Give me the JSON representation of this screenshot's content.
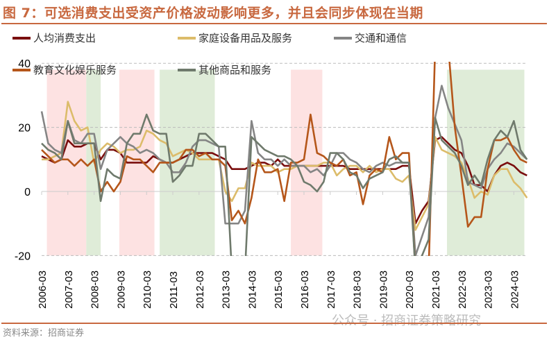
{
  "header": {
    "title": "图 7：可选消费支出受资产价格波动影响更多，并且会同步体现在当期"
  },
  "footer": {
    "source": "资料来源：招商证券",
    "watermark": "公众号 · 招商证券策略研究"
  },
  "chart_data": {
    "type": "line",
    "title": "图 7：可选消费支出受资产价格波动影响更多，并且会同步体现在当期",
    "xlabel": "",
    "ylabel": "",
    "ylim": [
      -20,
      40
    ],
    "yticks": [
      "-20",
      "0",
      "20",
      "40"
    ],
    "xticks": [
      "2006-03",
      "2007-03",
      "2008-03",
      "2009-03",
      "2010-03",
      "2011-03",
      "2012-03",
      "2013-03",
      "2014-03",
      "2015-03",
      "2016-03",
      "2017-03",
      "2018-03",
      "2019-03",
      "2020-03",
      "2021-03",
      "2022-03",
      "2023-03",
      "2024-03"
    ],
    "x_start": "2006-03",
    "frequency": "quarterly",
    "grid": true,
    "legend_position": "top",
    "shaded_periods": [
      {
        "from": 2006.2,
        "to": 2007.7,
        "color": "#fde2e2"
      },
      {
        "from": 2007.7,
        "to": 2008.25,
        "color": "#dfecd8"
      },
      {
        "from": 2008.96,
        "to": 2010.3,
        "color": "#fde2e2"
      },
      {
        "from": 2010.5,
        "to": 2012.6,
        "color": "#dfecd8"
      },
      {
        "from": 2015.5,
        "to": 2016.7,
        "color": "#fde2e2"
      },
      {
        "from": 2021.45,
        "to": 2024.4,
        "color": "#dfecd8"
      }
    ],
    "series": [
      {
        "name": "人均消费支出",
        "color": "#7a0e0e",
        "values": [
          11,
          10,
          9,
          10,
          16,
          14,
          14,
          15,
          15,
          10,
          13,
          13,
          12,
          9,
          9,
          9,
          9,
          11,
          10,
          9,
          9,
          10,
          11,
          12,
          12,
          12,
          12,
          11,
          10,
          7,
          7,
          7,
          8,
          9,
          9,
          8,
          10,
          8,
          8,
          8,
          8,
          8,
          8,
          8,
          8,
          8,
          8,
          7,
          7,
          7,
          7,
          7,
          7,
          7,
          7,
          8,
          8,
          -10,
          -6,
          -3,
          16,
          17,
          15,
          13,
          12,
          8,
          2,
          2,
          0,
          5,
          8,
          9,
          8,
          6,
          5
        ]
      },
      {
        "name": "家庭设备用品及服务",
        "color": "#dcbc6a",
        "values": [
          10,
          10,
          11,
          12,
          28,
          22,
          19,
          20,
          9,
          13,
          15,
          14,
          12,
          13,
          13,
          14,
          19,
          18,
          16,
          15,
          11,
          12,
          13,
          12,
          10,
          10,
          10,
          10,
          0,
          -3,
          1,
          1,
          9,
          8,
          8,
          8,
          6,
          7,
          7,
          8,
          8,
          8,
          8,
          9,
          9,
          5,
          7,
          8,
          8,
          6,
          8,
          6,
          7,
          7,
          4,
          3,
          5,
          -12,
          -8,
          -4,
          17,
          13,
          12,
          11,
          9,
          4,
          -2,
          0,
          -1,
          5,
          7,
          7,
          3,
          1,
          -2
        ]
      },
      {
        "name": "交通和通信",
        "color": "#858585",
        "values": [
          25,
          15,
          13,
          12,
          22,
          16,
          15,
          18,
          18,
          7,
          13,
          15,
          17,
          15,
          14,
          12,
          13,
          12,
          10,
          9,
          6,
          6,
          9,
          14,
          16,
          16,
          15,
          14,
          -10,
          -10,
          -10,
          -6,
          22,
          12,
          10,
          10,
          8,
          10,
          8,
          8,
          8,
          6,
          7,
          5,
          8,
          12,
          12,
          10,
          9,
          7,
          6,
          8,
          9,
          8,
          9,
          9,
          9,
          -20,
          -14,
          -8,
          23,
          33,
          26,
          21,
          16,
          3,
          2,
          1,
          7,
          10,
          12,
          15,
          14,
          12,
          10
        ]
      },
      {
        "name": "教育文化娱乐服务",
        "color": "#b5561a",
        "values": [
          13,
          11,
          9,
          10,
          10,
          8,
          10,
          8,
          10,
          0,
          3,
          0,
          3,
          11,
          10,
          10,
          8,
          6,
          9,
          9,
          9,
          10,
          13,
          13,
          11,
          12,
          10,
          10,
          8,
          -9,
          -6,
          -10,
          -2,
          10,
          6,
          6,
          7,
          -3,
          9,
          9,
          10,
          24,
          12,
          11,
          9,
          8,
          10,
          5,
          6,
          -4,
          5,
          7,
          6,
          17,
          10,
          12,
          12,
          -25,
          -25,
          -25,
          45,
          45,
          45,
          20,
          5,
          -11,
          -8,
          -8,
          7,
          16,
          16,
          17,
          13,
          10,
          9
        ]
      },
      {
        "name": "其他商品和服务",
        "color": "#6f7a6c",
        "values": [
          15,
          13,
          12,
          10,
          22,
          15,
          15,
          15,
          15,
          -3,
          7,
          5,
          4,
          15,
          18,
          18,
          24,
          19,
          18,
          18,
          3,
          5,
          8,
          8,
          18,
          18,
          16,
          14,
          14,
          -25,
          -25,
          -25,
          17,
          15,
          13,
          12,
          11,
          11,
          10,
          8,
          3,
          2,
          0,
          3,
          12,
          12,
          10,
          6,
          5,
          1,
          4,
          5,
          6,
          10,
          11,
          9,
          9,
          -25,
          -20,
          -15,
          23,
          16,
          14,
          12,
          8,
          2,
          5,
          2,
          10,
          16,
          19,
          17,
          22,
          13,
          10
        ]
      }
    ]
  }
}
